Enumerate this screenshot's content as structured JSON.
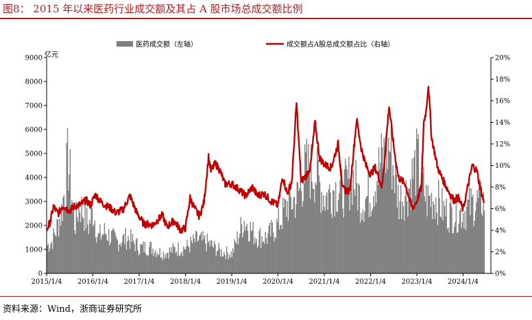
{
  "figure": {
    "title": "图8：  2015 年以来医药行业成交额及其占 A 股市场总成交额比例",
    "source": "资料来源：Wind，浙商证券研究所"
  },
  "colors": {
    "bar": "#7f7f7f",
    "line": "#c00000",
    "title": "#b01c1c"
  },
  "chart_data": {
    "type": "bar+line",
    "left_unit": "亿元",
    "left_ylim": [
      0,
      9000
    ],
    "left_ticks": [
      "0",
      "1000",
      "2000",
      "3000",
      "4000",
      "5000",
      "6000",
      "7000",
      "8000",
      "9000"
    ],
    "right_ylim": [
      0,
      20
    ],
    "right_ticks": [
      "0%",
      "2%",
      "4%",
      "6%",
      "8%",
      "10%",
      "12%",
      "14%",
      "16%",
      "18%",
      "20%"
    ],
    "x_ticks": [
      "2015/1/4",
      "2016/1/4",
      "2017/1/4",
      "2018/1/4",
      "2019/1/4",
      "2020/1/4",
      "2021/1/4",
      "2022/1/4",
      "2023/1/4",
      "2024/1/4"
    ],
    "grid": false,
    "legend_position": "top-center",
    "series": [
      {
        "name": "医药成交额（左轴）",
        "kind": "bar",
        "axis": "left",
        "points": [
          [
            2015.0,
            1400
          ],
          [
            2015.1,
            1600
          ],
          [
            2015.2,
            2200
          ],
          [
            2015.3,
            3000
          ],
          [
            2015.4,
            4500
          ],
          [
            2015.45,
            5800
          ],
          [
            2015.5,
            4800
          ],
          [
            2015.6,
            2400
          ],
          [
            2015.7,
            3500
          ],
          [
            2015.8,
            3000
          ],
          [
            2015.9,
            2400
          ],
          [
            2016.0,
            3200
          ],
          [
            2016.1,
            1800
          ],
          [
            2016.25,
            2100
          ],
          [
            2016.5,
            1600
          ],
          [
            2016.75,
            1800
          ],
          [
            2017.0,
            1300
          ],
          [
            2017.25,
            1300
          ],
          [
            2017.5,
            1000
          ],
          [
            2017.75,
            1200
          ],
          [
            2018.0,
            1300
          ],
          [
            2018.25,
            1700
          ],
          [
            2018.5,
            1500
          ],
          [
            2018.75,
            1100
          ],
          [
            2019.0,
            1000
          ],
          [
            2019.25,
            2700
          ],
          [
            2019.5,
            1900
          ],
          [
            2019.75,
            1800
          ],
          [
            2020.0,
            2500
          ],
          [
            2020.2,
            3500
          ],
          [
            2020.4,
            3800
          ],
          [
            2020.6,
            5300
          ],
          [
            2020.8,
            5100
          ],
          [
            2021.0,
            3800
          ],
          [
            2021.2,
            4300
          ],
          [
            2021.4,
            4200
          ],
          [
            2021.6,
            4900
          ],
          [
            2021.8,
            3600
          ],
          [
            2022.0,
            4000
          ],
          [
            2022.2,
            5500
          ],
          [
            2022.4,
            6500
          ],
          [
            2022.6,
            3700
          ],
          [
            2022.8,
            4200
          ],
          [
            2023.0,
            5700
          ],
          [
            2023.2,
            3700
          ],
          [
            2023.4,
            3800
          ],
          [
            2023.6,
            3100
          ],
          [
            2023.8,
            3000
          ],
          [
            2024.0,
            3100
          ],
          [
            2024.2,
            3500
          ],
          [
            2024.4,
            3700
          ],
          [
            2024.45,
            3700
          ]
        ]
      },
      {
        "name": "成交额占A股总成交额占比（右轴）",
        "kind": "line",
        "axis": "right",
        "points": [
          [
            2015.0,
            4.0
          ],
          [
            2015.08,
            4.8
          ],
          [
            2015.15,
            6.2
          ],
          [
            2015.25,
            5.5
          ],
          [
            2015.35,
            6.3
          ],
          [
            2015.5,
            5.8
          ],
          [
            2015.6,
            6.2
          ],
          [
            2015.75,
            6.4
          ],
          [
            2015.85,
            6.8
          ],
          [
            2015.95,
            6.3
          ],
          [
            2016.05,
            7.3
          ],
          [
            2016.2,
            6.5
          ],
          [
            2016.4,
            6.0
          ],
          [
            2016.5,
            5.6
          ],
          [
            2016.65,
            5.9
          ],
          [
            2016.8,
            7.2
          ],
          [
            2016.95,
            5.6
          ],
          [
            2017.1,
            4.6
          ],
          [
            2017.3,
            4.5
          ],
          [
            2017.5,
            5.4
          ],
          [
            2017.6,
            4.3
          ],
          [
            2017.75,
            4.9
          ],
          [
            2017.9,
            4.0
          ],
          [
            2018.0,
            4.2
          ],
          [
            2018.1,
            7.0
          ],
          [
            2018.2,
            6.0
          ],
          [
            2018.3,
            5.3
          ],
          [
            2018.4,
            6.6
          ],
          [
            2018.5,
            10.8
          ],
          [
            2018.55,
            9.5
          ],
          [
            2018.65,
            10.2
          ],
          [
            2018.75,
            9.5
          ],
          [
            2018.85,
            8.3
          ],
          [
            2019.0,
            8.3
          ],
          [
            2019.15,
            7.8
          ],
          [
            2019.3,
            7.2
          ],
          [
            2019.45,
            8.0
          ],
          [
            2019.55,
            7.2
          ],
          [
            2019.7,
            7.4
          ],
          [
            2019.85,
            6.7
          ],
          [
            2020.0,
            6.3
          ],
          [
            2020.1,
            9.0
          ],
          [
            2020.2,
            7.4
          ],
          [
            2020.3,
            8.5
          ],
          [
            2020.4,
            15.8
          ],
          [
            2020.5,
            8.5
          ],
          [
            2020.6,
            9.0
          ],
          [
            2020.7,
            9.8
          ],
          [
            2020.8,
            14.0
          ],
          [
            2020.9,
            10.7
          ],
          [
            2021.0,
            10.1
          ],
          [
            2021.15,
            9.8
          ],
          [
            2021.3,
            12.0
          ],
          [
            2021.4,
            7.8
          ],
          [
            2021.55,
            7.6
          ],
          [
            2021.7,
            14.3
          ],
          [
            2021.8,
            11.6
          ],
          [
            2021.9,
            10.0
          ],
          [
            2022.0,
            9.2
          ],
          [
            2022.1,
            9.8
          ],
          [
            2022.25,
            8.0
          ],
          [
            2022.4,
            15.5
          ],
          [
            2022.5,
            11.8
          ],
          [
            2022.6,
            8.9
          ],
          [
            2022.75,
            8.3
          ],
          [
            2022.9,
            6.0
          ],
          [
            2023.0,
            6.7
          ],
          [
            2023.1,
            8.0
          ],
          [
            2023.15,
            14.0
          ],
          [
            2023.2,
            15.0
          ],
          [
            2023.25,
            17.5
          ],
          [
            2023.32,
            12.6
          ],
          [
            2023.45,
            9.8
          ],
          [
            2023.55,
            8.8
          ],
          [
            2023.7,
            7.5
          ],
          [
            2023.8,
            6.8
          ],
          [
            2023.9,
            7.0
          ],
          [
            2024.0,
            5.9
          ],
          [
            2024.1,
            8.0
          ],
          [
            2024.2,
            10.0
          ],
          [
            2024.3,
            9.5
          ],
          [
            2024.35,
            8.3
          ],
          [
            2024.45,
            6.6
          ]
        ]
      }
    ]
  }
}
